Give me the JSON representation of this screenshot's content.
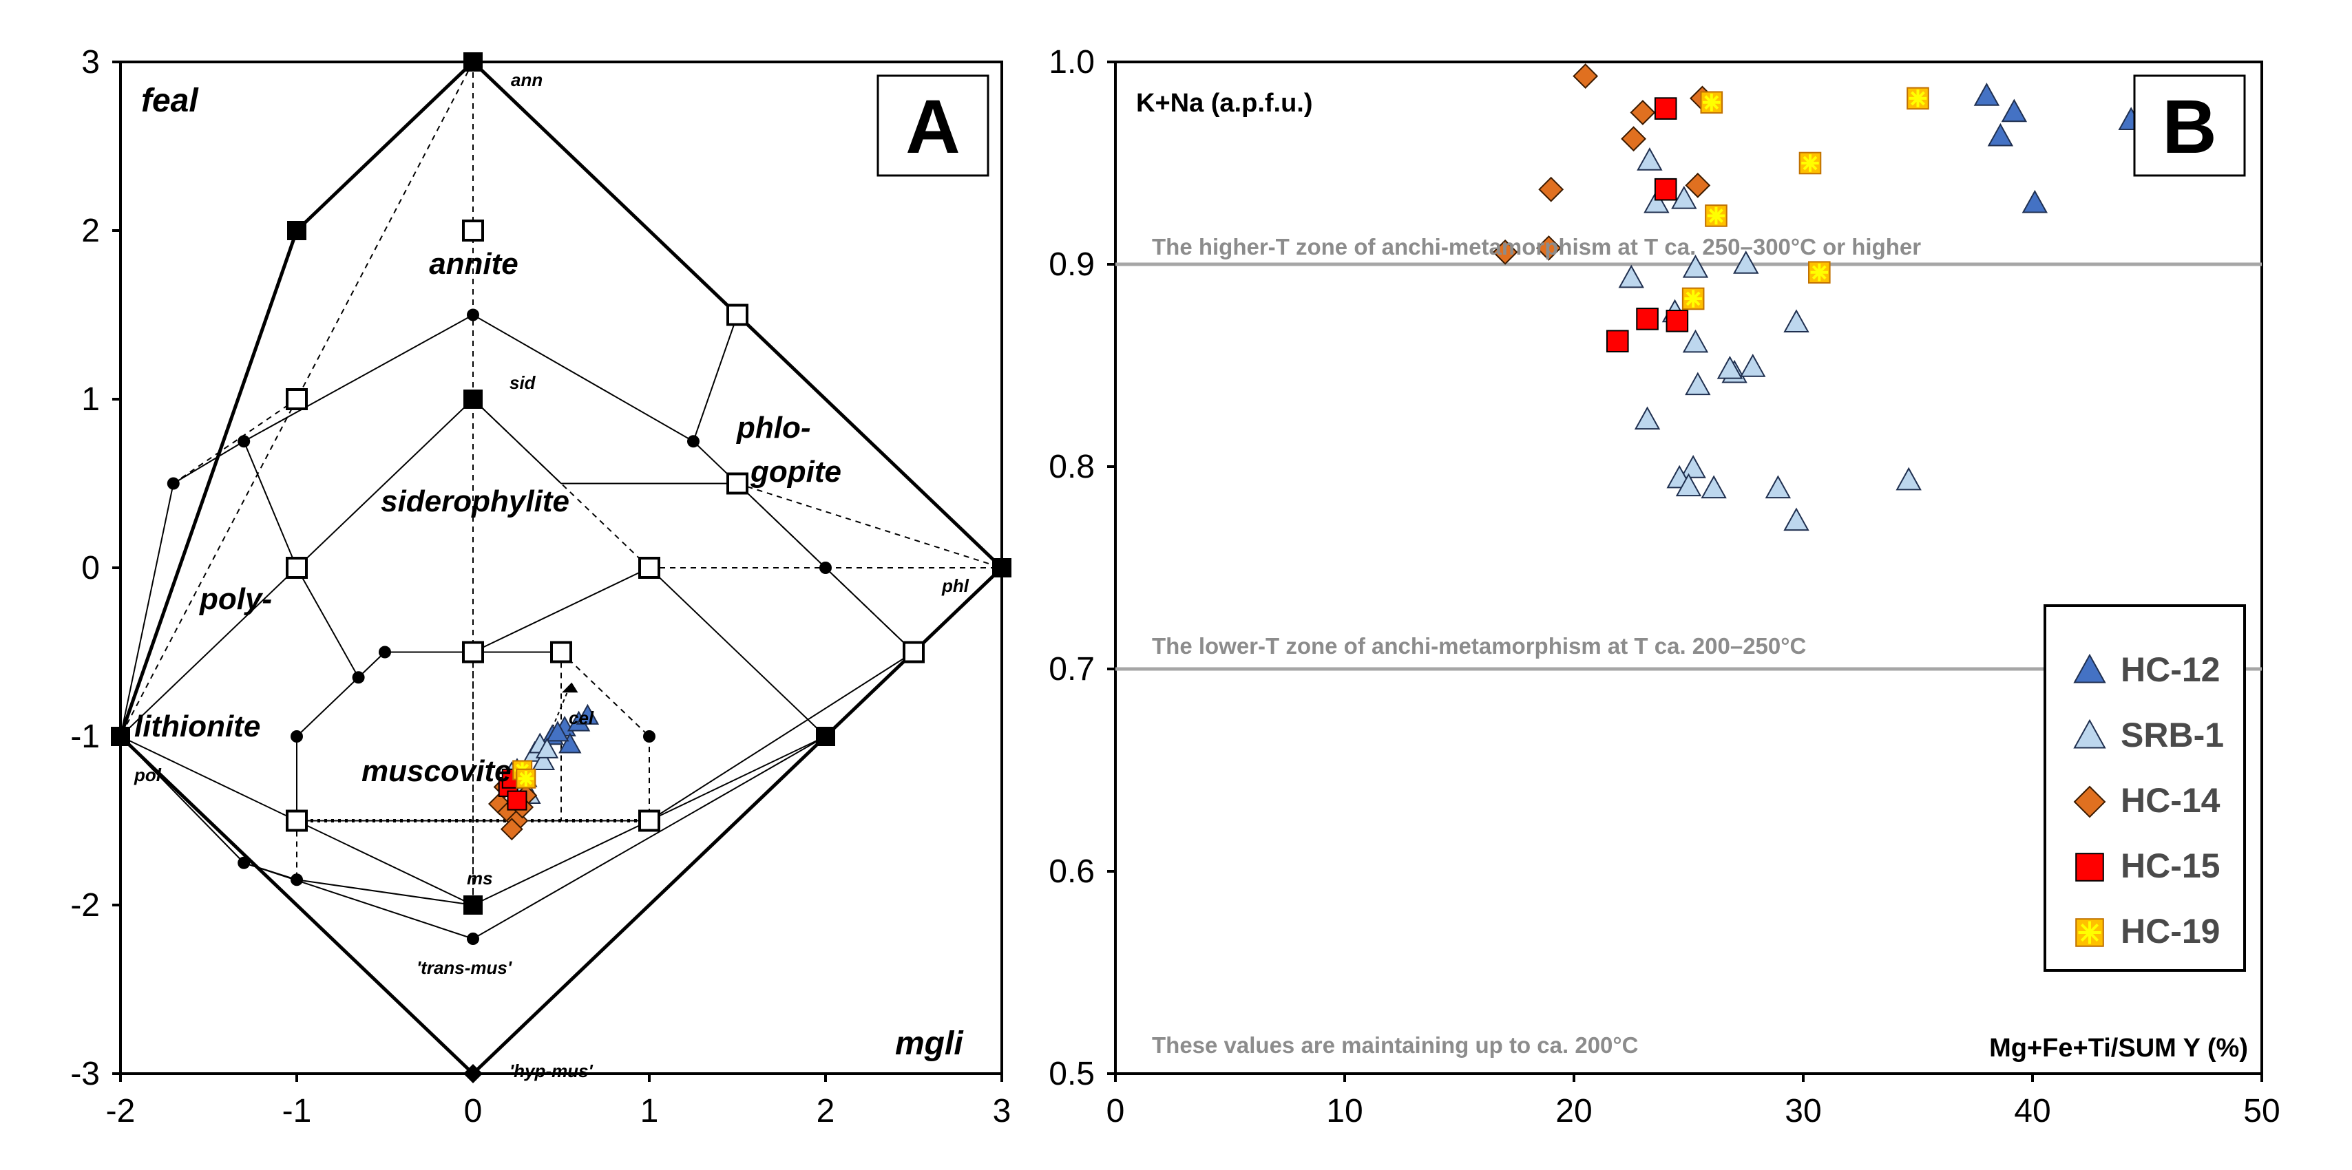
{
  "colors": {
    "hc12": "#4472c4",
    "srb1": "#bdd7ee",
    "hc14": "#e07020",
    "hc15": "#ff0000",
    "hc19": "#ffc000",
    "hc19_star": "#ffff00",
    "zone_line": "#a6a6a6",
    "zone_text": "#8c8c8c"
  },
  "chart_data": [
    {
      "type": "scatter",
      "panel": "A",
      "title": "A",
      "xlim": [
        -2,
        3
      ],
      "ylim": [
        -3,
        3
      ],
      "x_ticks": [
        "-2",
        "-1",
        "0",
        "1",
        "2",
        "3"
      ],
      "y_ticks": [
        "-3",
        "-2",
        "-1",
        "0",
        "1",
        "2",
        "3"
      ],
      "corner_labels": [
        "feal",
        "mgli"
      ],
      "field_labels": [
        "annite",
        "phlo-",
        "gopite",
        "siderophylite",
        "poly-",
        "lithionite",
        "muscovite"
      ],
      "end_members": [
        {
          "label": "ann",
          "x": 0,
          "y": 3
        },
        {
          "label": "sid",
          "x": 0,
          "y": 1
        },
        {
          "label": "phl",
          "x": 3,
          "y": 0
        },
        {
          "label": "pol",
          "x": -2,
          "y": -1
        },
        {
          "label": "ms",
          "x": 0,
          "y": -2
        },
        {
          "label": "'trans-mus'",
          "x": 0,
          "y": -2.2
        },
        {
          "label": "'hyp-mus'",
          "x": 0,
          "y": -3
        },
        {
          "label": "cel",
          "x": 0.5,
          "y": -0.7
        }
      ],
      "filled_squares": [
        [
          0,
          3
        ],
        [
          -1,
          2
        ],
        [
          0,
          1
        ],
        [
          3,
          0
        ],
        [
          -2,
          -1
        ],
        [
          2,
          -1
        ],
        [
          0,
          -2
        ]
      ],
      "open_squares": [
        [
          0,
          2
        ],
        [
          1.5,
          1.5
        ],
        [
          -1,
          1
        ],
        [
          1.5,
          0.5
        ],
        [
          -1,
          0
        ],
        [
          1,
          0
        ],
        [
          0,
          -0.5
        ],
        [
          0.5,
          -0.5
        ],
        [
          2.5,
          -0.5
        ],
        [
          -1,
          -1.5
        ],
        [
          1,
          -1.5
        ]
      ],
      "dots": [
        [
          0,
          1.5
        ],
        [
          -1.3,
          0.75
        ],
        [
          -1.7,
          0.5
        ],
        [
          1.25,
          0.75
        ],
        [
          2,
          0
        ],
        [
          -0.65,
          -0.65
        ],
        [
          -0.5,
          -0.5
        ],
        [
          -1,
          -1
        ],
        [
          1,
          -1
        ],
        [
          -1.3,
          -1.75
        ],
        [
          -1,
          -1.85
        ],
        [
          0,
          -2.2
        ]
      ],
      "diamonds": [
        [
          0,
          -3
        ]
      ],
      "series": [
        {
          "name": "HC-12",
          "marker": "triangle",
          "points": [
            [
              0.45,
              -1.0
            ],
            [
              0.52,
              -0.95
            ],
            [
              0.6,
              -0.92
            ],
            [
              0.65,
              -0.88
            ],
            [
              0.55,
              -1.05
            ],
            [
              0.48,
              -0.98
            ]
          ]
        },
        {
          "name": "SRB-1",
          "marker": "triangle",
          "points": [
            [
              0.25,
              -1.2
            ],
            [
              0.3,
              -1.25
            ],
            [
              0.35,
              -1.1
            ],
            [
              0.28,
              -1.3
            ],
            [
              0.4,
              -1.15
            ],
            [
              0.32,
              -1.35
            ],
            [
              0.38,
              -1.05
            ],
            [
              0.22,
              -1.22
            ],
            [
              0.42,
              -1.08
            ]
          ]
        },
        {
          "name": "HC-14",
          "marker": "diamond",
          "points": [
            [
              0.15,
              -1.4
            ],
            [
              0.2,
              -1.45
            ],
            [
              0.25,
              -1.5
            ],
            [
              0.3,
              -1.35
            ],
            [
              0.22,
              -1.55
            ],
            [
              0.18,
              -1.3
            ],
            [
              0.28,
              -1.42
            ]
          ]
        },
        {
          "name": "HC-15",
          "marker": "square",
          "points": [
            [
              0.2,
              -1.3
            ],
            [
              0.25,
              -1.38
            ],
            [
              0.22,
              -1.25
            ]
          ]
        },
        {
          "name": "HC-19",
          "marker": "star-square",
          "points": [
            [
              0.28,
              -1.2
            ],
            [
              0.3,
              -1.25
            ]
          ]
        }
      ]
    },
    {
      "type": "scatter",
      "panel": "B",
      "title": "B",
      "xlabel": "Mg+Fe+Ti/SUM Y (%)",
      "ylabel": "K+Na (a.p.f.u.)",
      "xlim": [
        0,
        50
      ],
      "ylim": [
        0.5,
        1.0
      ],
      "x_ticks": [
        "0",
        "10",
        "20",
        "30",
        "40",
        "50"
      ],
      "y_ticks": [
        "0.5",
        "0.6",
        "0.7",
        "0.8",
        "0.9",
        "1.0"
      ],
      "reference_lines": [
        {
          "y": 0.9,
          "label": "The higher-T zone of anchi-metamorphism at T ca. 250–300°C or higher"
        },
        {
          "y": 0.7,
          "label": "The lower-T zone of anchi-metamorphism at T ca. 200–250°C"
        }
      ],
      "bottom_note": "These values are maintaining up to ca. 200°C",
      "series": [
        {
          "name": "HC-12",
          "marker": "triangle",
          "x": [
            38.0,
            39.2,
            38.6,
            44.3,
            40.1
          ],
          "y": [
            0.983,
            0.975,
            0.963,
            0.971,
            0.93
          ]
        },
        {
          "name": "SRB-1",
          "marker": "triangle",
          "x": [
            23.3,
            23.6,
            24.8,
            22.5,
            25.3,
            27.5,
            24.4,
            25.3,
            29.7,
            27.0,
            26.8,
            27.8,
            25.4,
            23.2,
            25.2,
            24.6,
            25.0,
            26.1,
            28.9,
            34.6,
            29.7
          ],
          "y": [
            0.951,
            0.93,
            0.932,
            0.893,
            0.898,
            0.9,
            0.876,
            0.861,
            0.871,
            0.846,
            0.848,
            0.849,
            0.84,
            0.823,
            0.799,
            0.794,
            0.79,
            0.789,
            0.789,
            0.793,
            0.773
          ]
        },
        {
          "name": "HC-14",
          "marker": "diamond",
          "x": [
            20.5,
            23.0,
            22.6,
            25.6,
            25.4,
            19.0,
            17.0,
            18.9
          ],
          "y": [
            0.993,
            0.975,
            0.962,
            0.982,
            0.939,
            0.937,
            0.906,
            0.908
          ]
        },
        {
          "name": "HC-15",
          "marker": "square",
          "x": [
            24.0,
            24.0,
            21.9,
            23.2,
            24.5
          ],
          "y": [
            0.977,
            0.937,
            0.862,
            0.873,
            0.872
          ]
        },
        {
          "name": "HC-19",
          "marker": "star-square",
          "x": [
            26.0,
            35.0,
            30.3,
            26.2,
            30.7,
            25.2
          ],
          "y": [
            0.98,
            0.982,
            0.95,
            0.924,
            0.896,
            0.883
          ]
        }
      ]
    }
  ],
  "legend": {
    "items": [
      {
        "label": "HC-12"
      },
      {
        "label": "SRB-1"
      },
      {
        "label": "HC-14"
      },
      {
        "label": "HC-15"
      },
      {
        "label": "HC-19"
      }
    ]
  }
}
